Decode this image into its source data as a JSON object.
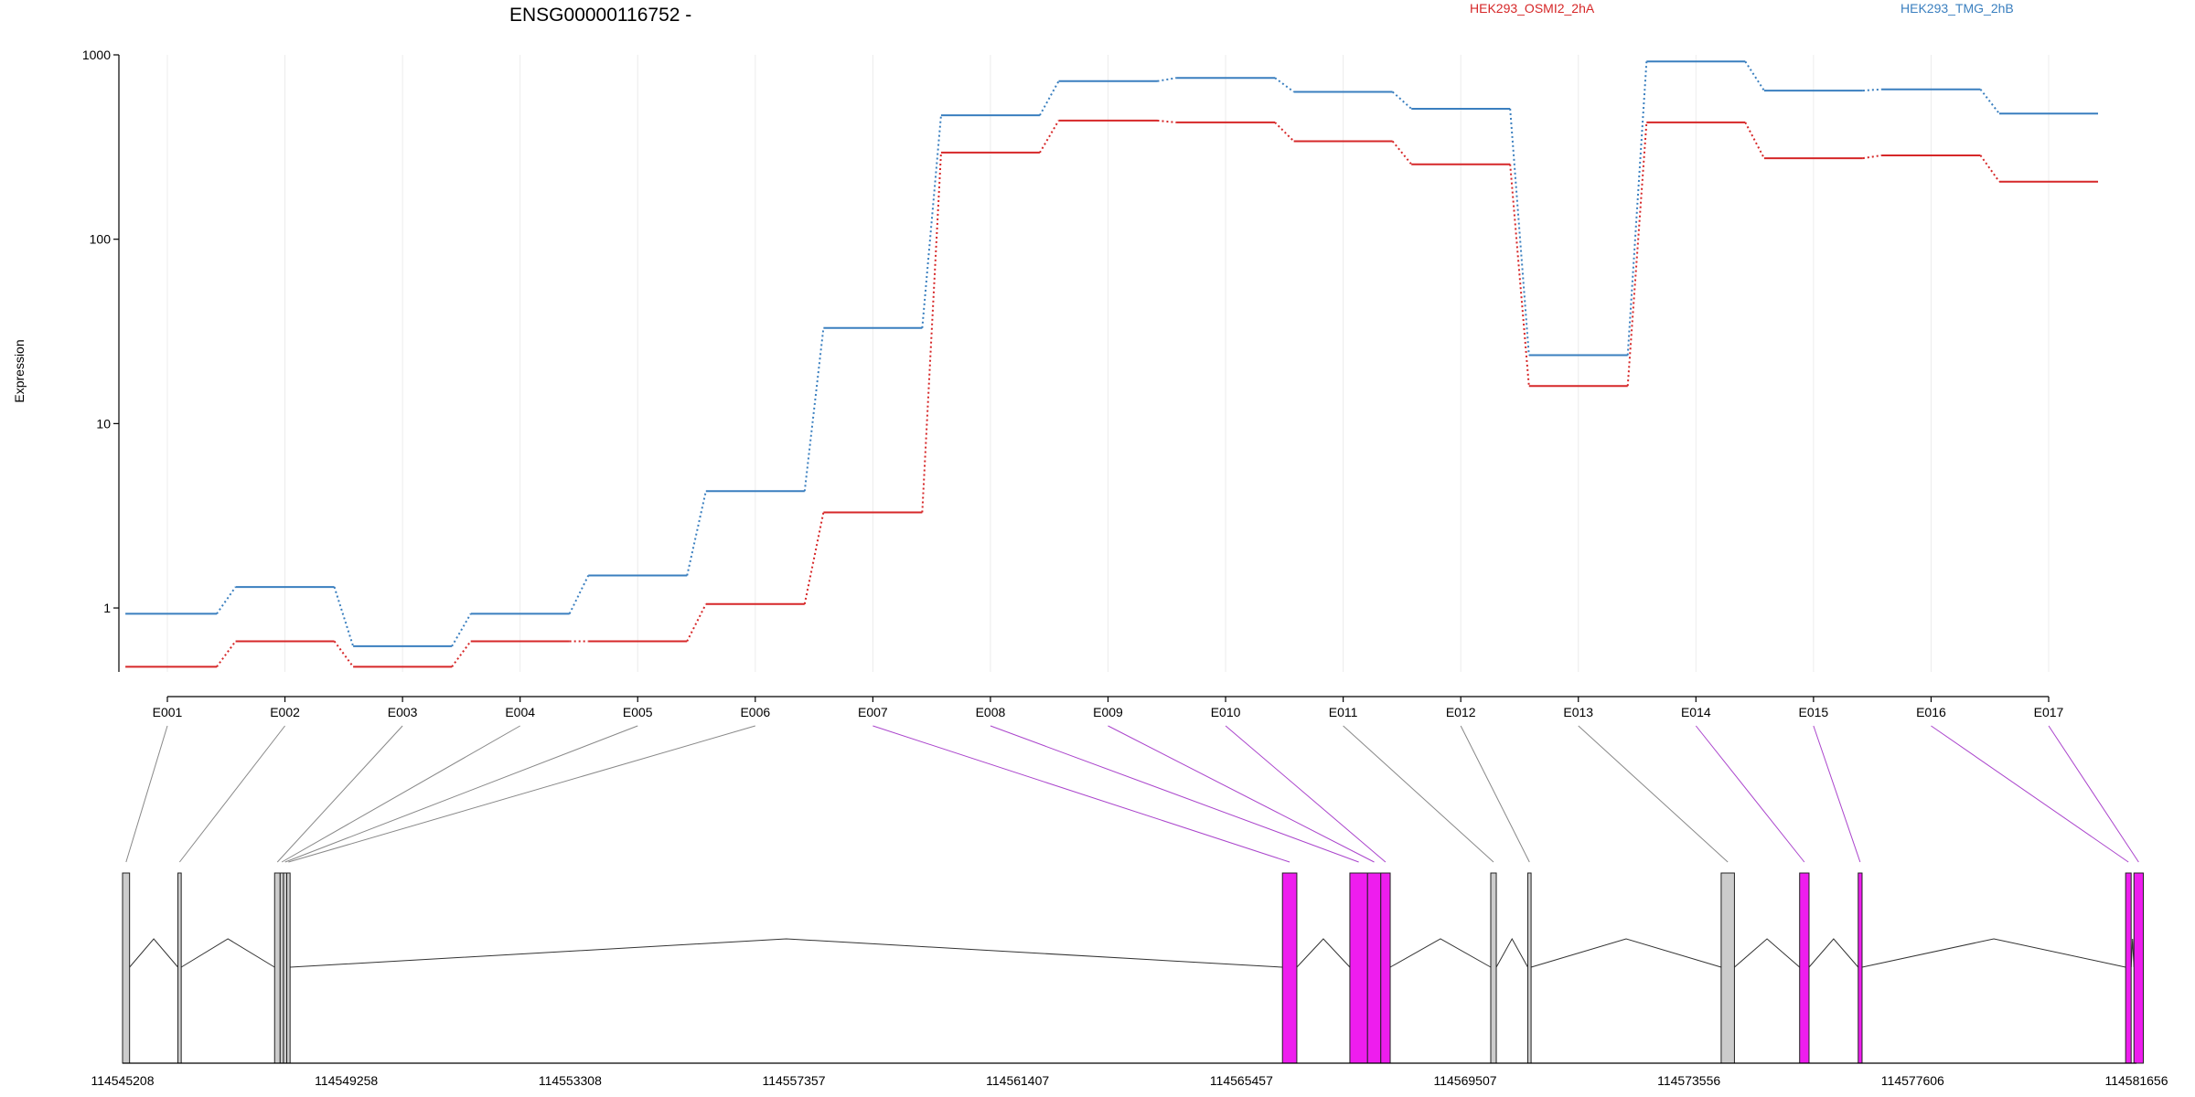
{
  "chart_data": [
    {
      "type": "line",
      "title": "ENSG00000116752 -",
      "ylabel": "Expression",
      "xlabel": "",
      "y_scale": "log",
      "ylim": [
        0.45,
        1000
      ],
      "y_ticks": [
        1,
        10,
        100,
        1000
      ],
      "y_tick_labels": [
        "1",
        "10",
        "100",
        "1000"
      ],
      "grid": "vertical lines at exon positions",
      "legend": "top (text labels)",
      "line_style": "solid within exon, dotted between exons",
      "categories": [
        "E001",
        "E002",
        "E003",
        "E004",
        "E005",
        "E006",
        "E007",
        "E008",
        "E009",
        "E010",
        "E011",
        "E012",
        "E013",
        "E014",
        "E015",
        "E016",
        "E017"
      ],
      "series": [
        {
          "name": "HEK293_OSMI2_2hA",
          "color": "#d62728",
          "values": [
            0.48,
            0.66,
            0.48,
            0.66,
            0.66,
            1.05,
            3.3,
            295,
            440,
            430,
            340,
            255,
            16,
            430,
            275,
            285,
            205
          ]
        },
        {
          "name": "HEK293_TMG_2hB",
          "color": "#3a7fbf",
          "values": [
            0.93,
            1.3,
            0.62,
            0.93,
            1.5,
            4.3,
            33,
            470,
            720,
            750,
            630,
            510,
            23.5,
            920,
            640,
            650,
            480
          ]
        }
      ]
    },
    {
      "type": "gene-model",
      "coordinate_labels": [
        "114545208",
        "114549258",
        "114553308",
        "114557357",
        "114561407",
        "114565457",
        "114569507",
        "114573556",
        "114577606",
        "114581656"
      ],
      "exon_colors": {
        "constitutive": "#cccccc",
        "differential": "#ee1dee",
        "connector_gray": "#888888",
        "connector_purple": "#aa44cc"
      },
      "exons": [
        {
          "id": "E001",
          "start": 114545208,
          "end": 114545335,
          "status": "constitutive"
        },
        {
          "id": "E002",
          "start": 114546210,
          "end": 114546270,
          "status": "constitutive"
        },
        {
          "id": "E003",
          "start": 114547960,
          "end": 114548060,
          "status": "constitutive"
        },
        {
          "id": "E004",
          "start": 114548060,
          "end": 114548120,
          "status": "constitutive"
        },
        {
          "id": "E005",
          "start": 114548120,
          "end": 114548180,
          "status": "constitutive"
        },
        {
          "id": "E006",
          "start": 114548180,
          "end": 114548240,
          "status": "constitutive"
        },
        {
          "id": "E007",
          "start": 114566200,
          "end": 114566460,
          "status": "differential"
        },
        {
          "id": "E008",
          "start": 114567420,
          "end": 114567740,
          "status": "differential"
        },
        {
          "id": "E009",
          "start": 114567740,
          "end": 114567980,
          "status": "differential"
        },
        {
          "id": "E010",
          "start": 114567980,
          "end": 114568150,
          "status": "differential"
        },
        {
          "id": "E011",
          "start": 114569970,
          "end": 114570070,
          "status": "constitutive"
        },
        {
          "id": "E012",
          "start": 114570640,
          "end": 114570700,
          "status": "constitutive"
        },
        {
          "id": "E013",
          "start": 114574140,
          "end": 114574380,
          "status": "constitutive"
        },
        {
          "id": "E014",
          "start": 114575560,
          "end": 114575730,
          "status": "differential"
        },
        {
          "id": "E015",
          "start": 114576620,
          "end": 114576690,
          "status": "differential"
        },
        {
          "id": "E016",
          "start": 114581460,
          "end": 114581560,
          "status": "differential"
        },
        {
          "id": "E017",
          "start": 114581610,
          "end": 114581780,
          "status": "differential"
        }
      ]
    }
  ]
}
